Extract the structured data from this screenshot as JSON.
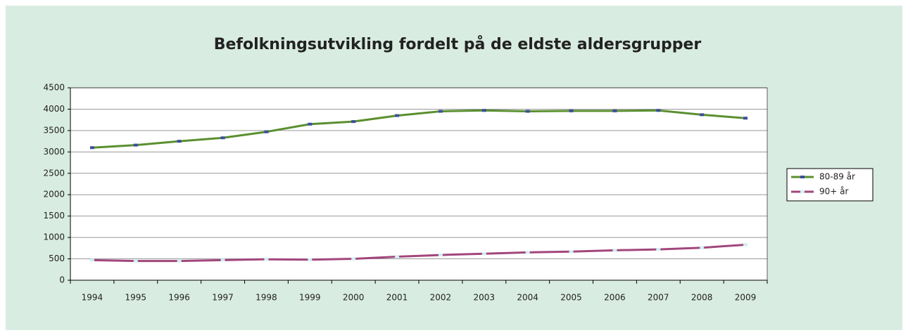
{
  "chart_data": {
    "type": "line",
    "title": "Befolkningsutvikling fordelt på de eldste aldersgrupper",
    "categories": [
      "1994",
      "1995",
      "1996",
      "1997",
      "1998",
      "1999",
      "2000",
      "2001",
      "2002",
      "2003",
      "2004",
      "2005",
      "2006",
      "2007",
      "2008",
      "2009"
    ],
    "series": [
      {
        "name": "80-89 år",
        "color": "#5b8f2f",
        "marker_color": "#3b4f9e",
        "values": [
          3100,
          3160,
          3250,
          3330,
          3470,
          3650,
          3710,
          3850,
          3950,
          3970,
          3950,
          3960,
          3960,
          3970,
          3870,
          3790
        ]
      },
      {
        "name": "90+ år",
        "color": "#a2467c",
        "marker_color": "#cfeef0",
        "values": [
          470,
          450,
          450,
          470,
          490,
          480,
          500,
          550,
          590,
          620,
          650,
          670,
          700,
          720,
          760,
          830
        ]
      }
    ],
    "ylim": [
      0,
      4500
    ],
    "yticks": [
      0,
      500,
      1000,
      1500,
      2000,
      2500,
      3000,
      3500,
      4000,
      4500
    ],
    "grid": true,
    "legend": "right"
  }
}
